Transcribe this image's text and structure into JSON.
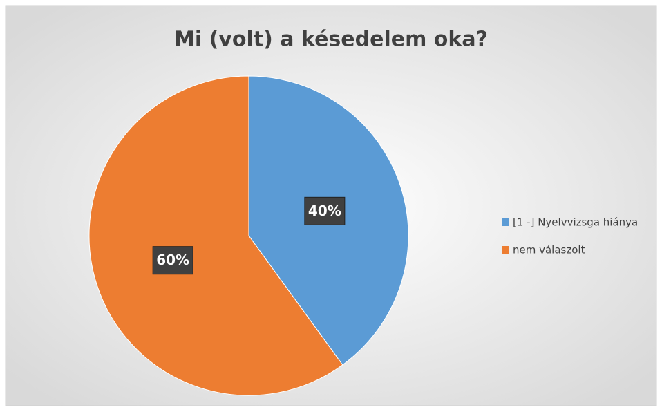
{
  "chart_data": {
    "type": "pie",
    "title": "Mi (volt) a késedelem oka?",
    "categories": [
      "[1 -] Nyelvvizsga hiánya",
      "nem válaszolt"
    ],
    "values": [
      40,
      60
    ],
    "value_labels": [
      "40%",
      "60%"
    ],
    "colors": [
      "#5b9bd5",
      "#ed7d31"
    ],
    "legend": "right"
  }
}
